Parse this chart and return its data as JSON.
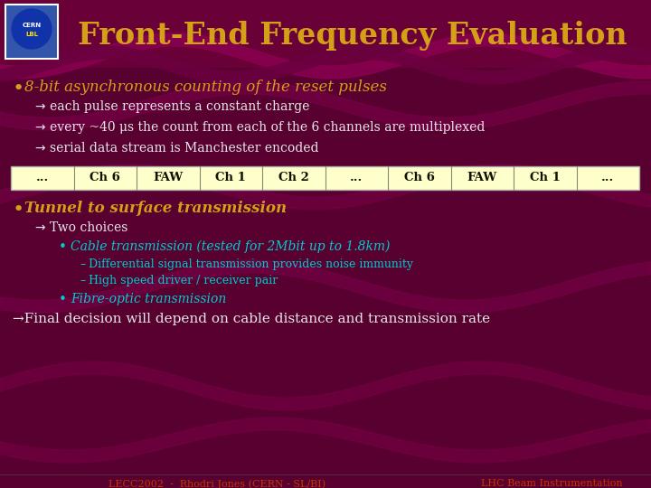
{
  "title": "Front-End Frequency Evaluation",
  "bg_color": "#580030",
  "header_color": "#6a0038",
  "title_color": "#d4a017",
  "bullet1_text": "8-bit asynchronous counting of the reset pulses",
  "sub1_1": "each pulse represents a constant charge",
  "sub1_2": "every ~40 μs the count from each of the 6 channels are multiplexed",
  "sub1_3": "serial data stream is Manchester encoded",
  "table_items": [
    "...",
    "Ch 6",
    "FAW",
    "Ch 1",
    "Ch 2",
    "...",
    "Ch 6",
    "FAW",
    "Ch 1",
    "..."
  ],
  "bullet2_text": "Tunnel to surface transmission",
  "sub2_1": "Two choices",
  "cable_text": "Cable transmission (tested for 2Mbit up to 1.8km)",
  "dash1": "Differential signal transmission provides noise immunity",
  "dash2": "High speed driver / receiver pair",
  "fibre_text": "Fibre-optic transmission",
  "final_text": "Final decision will depend on cable distance and transmission rate",
  "footer_left": "LECC2002  -  Rhodri Jones (CERN - SL/BI)",
  "footer_right": "LHC Beam Instrumentation",
  "cream": "#ffffcc",
  "yellow_text": "#d4a017",
  "cyan_text": "#00cccc",
  "white_text": "#e8e8e8",
  "footer_color": "#cc3300",
  "wave_dark": "#7a0048"
}
